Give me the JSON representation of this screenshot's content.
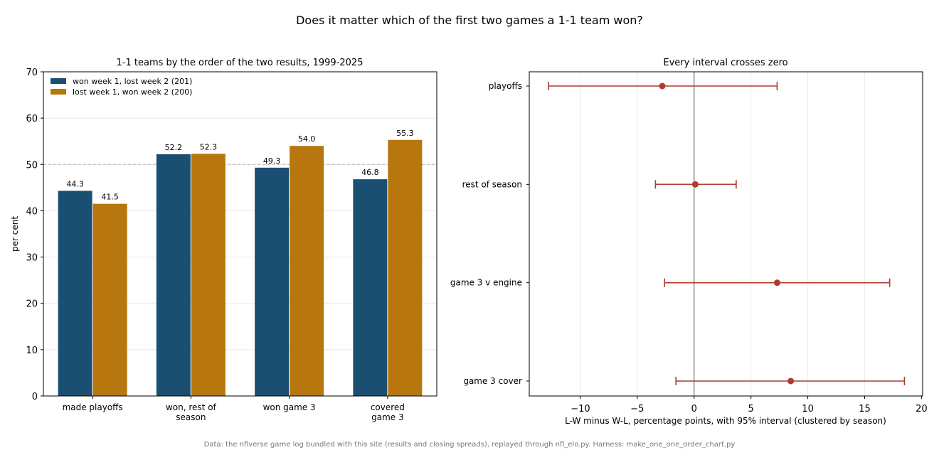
{
  "figure": {
    "suptitle": "Does it matter which of the first two games a 1-1 team won?",
    "footer": "Data: the nflverse game log bundled with this site (results and closing spreads), replayed through nfl_elo.py. Harness: make_one_one_order_chart.py"
  },
  "chart_data": [
    {
      "type": "bar",
      "title": "1-1 teams by the order of the two results, 1999-2025",
      "xlabel": "",
      "ylabel": "per cent",
      "ylim": [
        0,
        70
      ],
      "yticks": [
        0,
        10,
        20,
        30,
        40,
        50,
        60,
        70
      ],
      "reference_line": 50,
      "grid": "y",
      "legend_position": "top-left",
      "categories": [
        "made playoffs",
        "won, rest of\nseason",
        "won game 3",
        "covered\ngame 3"
      ],
      "series": [
        {
          "name": "won week 1, lost week 2 (201)",
          "color": "#1b4f72",
          "values": [
            44.3,
            52.2,
            49.3,
            46.8
          ],
          "labels": [
            "44.3",
            "52.2",
            "49.3",
            "46.8"
          ]
        },
        {
          "name": "lost week 1, won week 2 (200)",
          "color": "#b8760e",
          "values": [
            41.5,
            52.3,
            54.0,
            55.3
          ],
          "labels": [
            "41.5",
            "52.3",
            "54.0",
            "55.3"
          ]
        }
      ]
    },
    {
      "type": "scatter",
      "subtype": "interval",
      "title": "Every interval crosses zero",
      "xlabel": "L-W minus W-L, percentage points, with 95% interval (clustered by season)",
      "ylabel": "",
      "xlim": [
        -14.5,
        20.1
      ],
      "xticks": [
        -10,
        -5,
        0,
        5,
        10,
        15,
        20
      ],
      "xtick_labels": [
        "−10",
        "−5",
        "0",
        "5",
        "10",
        "15",
        "20"
      ],
      "zero_line": 0,
      "grid": "x",
      "color": "#b03a2e",
      "categories": [
        "playoffs",
        "rest of season",
        "game 3 v engine",
        "game 3 cover"
      ],
      "estimate": [
        -2.8,
        0.1,
        7.3,
        8.5
      ],
      "lower": [
        -12.8,
        -3.4,
        -2.6,
        -1.6
      ],
      "upper": [
        7.3,
        3.7,
        17.2,
        18.5
      ]
    }
  ]
}
